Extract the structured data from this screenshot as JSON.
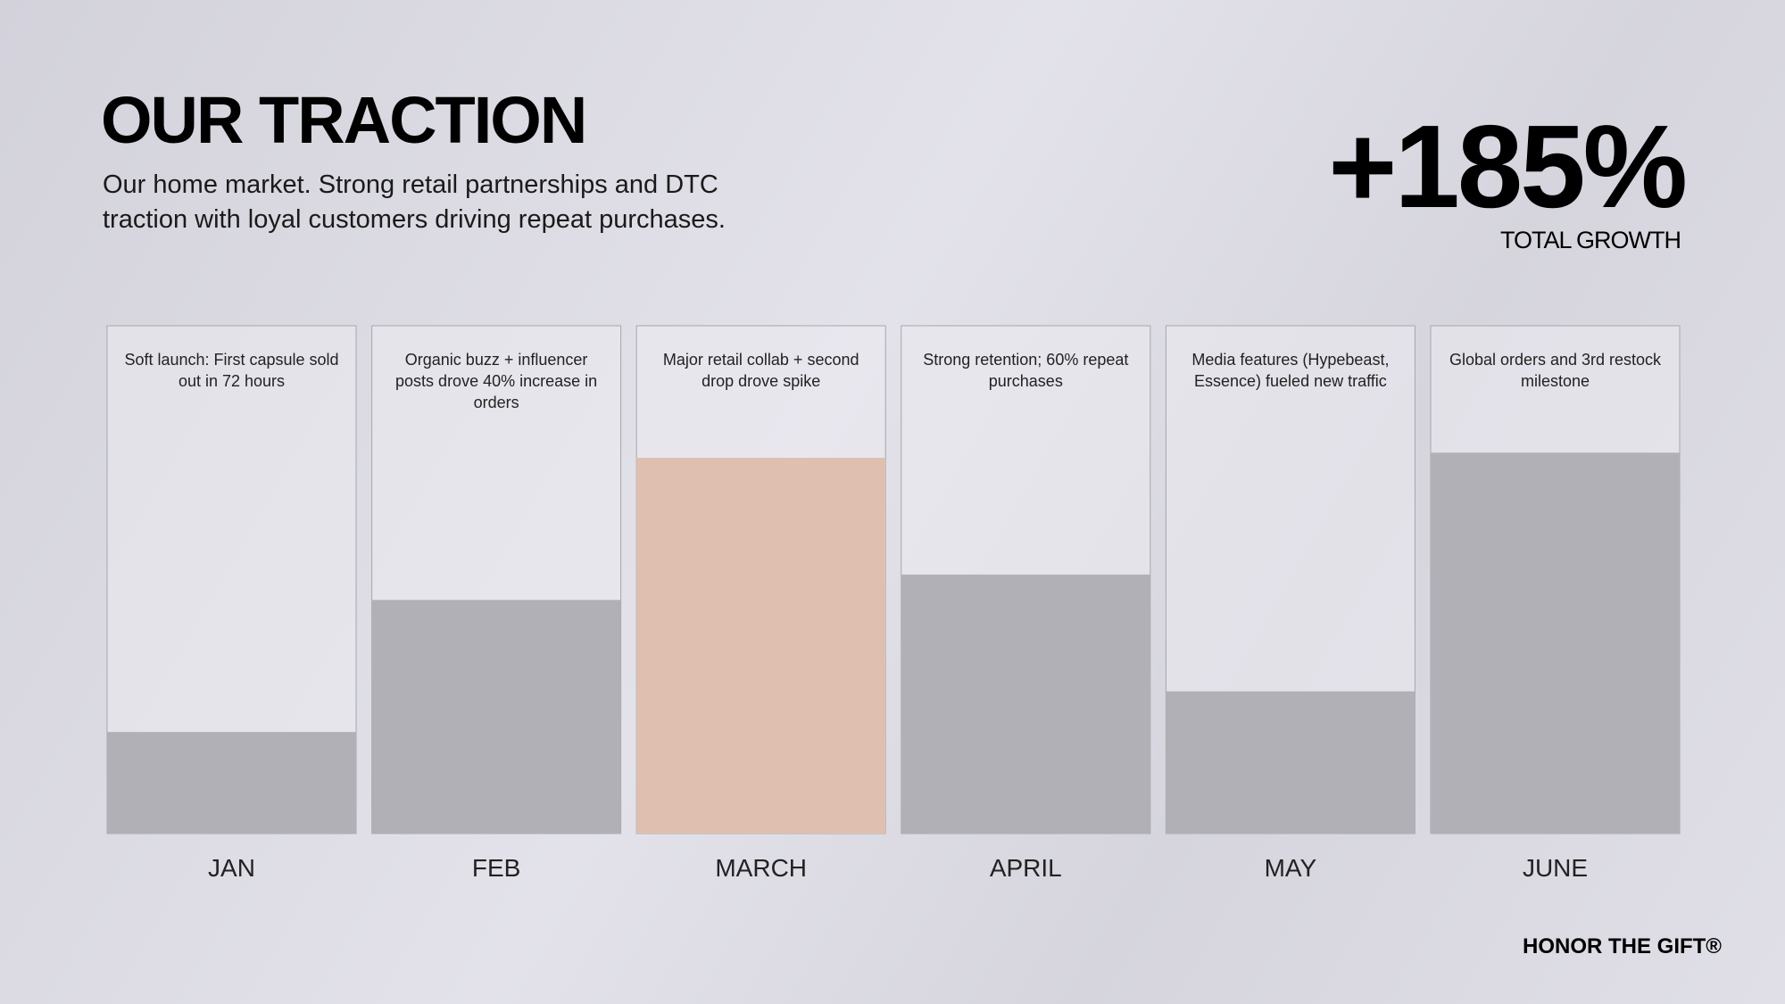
{
  "chart_data": {
    "type": "bar",
    "title": "OUR TRACTION",
    "subtitle": "Our home market. Strong retail partnerships and DTC traction with loyal customers driving repeat purchases.",
    "headline": "+185%",
    "headline_label": "TOTAL GROWTH",
    "categories": [
      "JAN",
      "FEB",
      "MARCH",
      "APRIL",
      "MAY",
      "JUNE"
    ],
    "values": [
      20,
      46,
      74,
      51,
      28,
      75
    ],
    "colors": [
      "#b1b0b6",
      "#b1b0b6",
      "#dfc0b0",
      "#b1b0b6",
      "#b1b0b6",
      "#b1b0b6"
    ],
    "annotations": [
      "Soft launch: First capsule sold out in 72 hours",
      "Organic buzz + influencer posts drove 40% increase in orders",
      "Major retail collab + second drop drove spike",
      "Strong retention; 60% repeat purchases",
      "Media features (Hypebeast, Essence) fueled new traffic",
      "Global orders and 3rd restock milestone"
    ],
    "ylim": [
      0,
      100
    ]
  },
  "brand": "HONOR THE GIFT®"
}
